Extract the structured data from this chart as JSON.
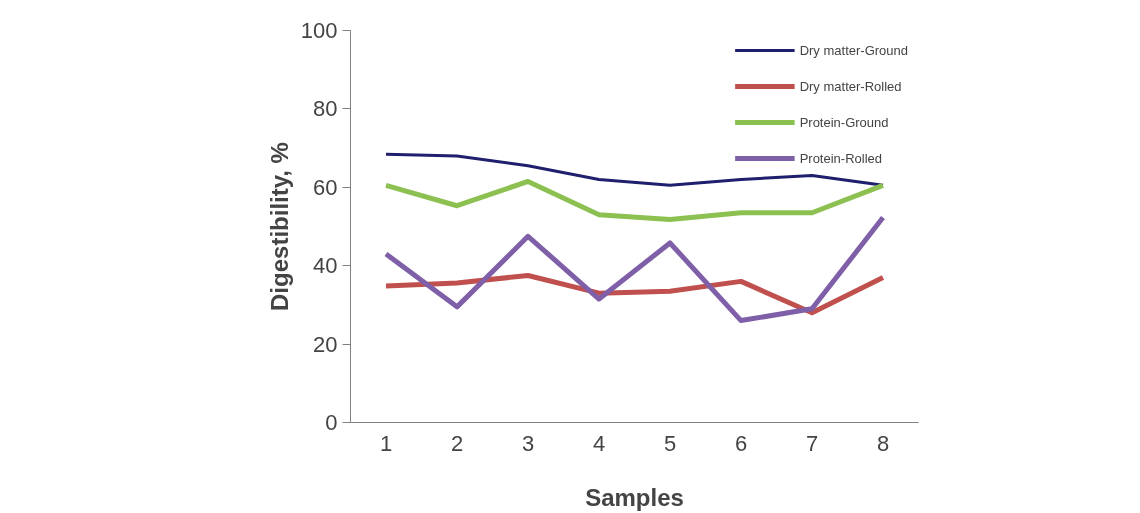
{
  "chart_data": {
    "type": "line",
    "xlabel": "Samples",
    "ylabel": "Digestibility, %",
    "categories": [
      "1",
      "2",
      "3",
      "4",
      "5",
      "6",
      "7",
      "8"
    ],
    "ylim": [
      0,
      100
    ],
    "yticks": [
      0,
      20,
      40,
      60,
      80,
      100
    ],
    "grid": false,
    "legend": "top right",
    "marker": "none",
    "line_style": "solid",
    "series": [
      {
        "name": "Dry matter-Ground",
        "color": "#1f1f6e",
        "values": [
          68.4,
          68,
          65.5,
          62,
          60.5,
          62,
          63,
          60.5
        ]
      },
      {
        "name": "Dry matter-Rolled",
        "color": "#c0504d",
        "values": [
          34.8,
          35.6,
          37.5,
          33,
          33.5,
          36,
          28,
          37
        ]
      },
      {
        "name": "Protein-Ground",
        "color": "#8cc152",
        "values": [
          60.5,
          55.3,
          61.5,
          53,
          51.8,
          53.5,
          53.5,
          60.5
        ]
      },
      {
        "name": "Protein-Rolled",
        "color": "#7f5fa8",
        "values": [
          43,
          29.5,
          47.5,
          31.5,
          45.8,
          26,
          29,
          52.3
        ]
      }
    ]
  }
}
